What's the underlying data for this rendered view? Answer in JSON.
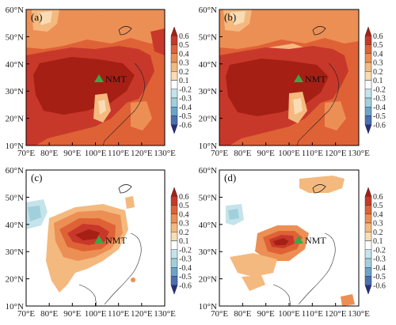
{
  "figure": {
    "x_tick_labels": [
      "70°E",
      "80°E",
      "90°E",
      "100°E",
      "110°E",
      "120°E",
      "130°E"
    ],
    "y_tick_labels": [
      "10°N",
      "20°N",
      "30°N",
      "40°N",
      "50°N",
      "60°N"
    ],
    "colorbar_ticks": [
      "0.6",
      "0.5",
      "0.4",
      "0.3",
      "0.2",
      "0.1",
      "-0.2",
      "-0.3",
      "-0.4",
      "-0.5",
      "-0.6"
    ],
    "colors": {
      "c06": "#a61f14",
      "c05": "#c8382a",
      "c04": "#df6236",
      "c03": "#ec8f55",
      "c02": "#f4b97e",
      "c01": "#f9dcb4",
      "cn2": "#c4e3ea",
      "cn3": "#a2cfdc",
      "cn4": "#6aa4cb",
      "cn5": "#4a6fb2",
      "cn6": "#2a2d7c",
      "marker": "#3aa64a"
    },
    "panels": [
      {
        "label": "(a)",
        "site_label": "NMT"
      },
      {
        "label": "(b)",
        "site_label": "NMT"
      },
      {
        "label": "(c)",
        "site_label": "NMT"
      },
      {
        "label": "(d)",
        "site_label": "NMT"
      }
    ]
  }
}
